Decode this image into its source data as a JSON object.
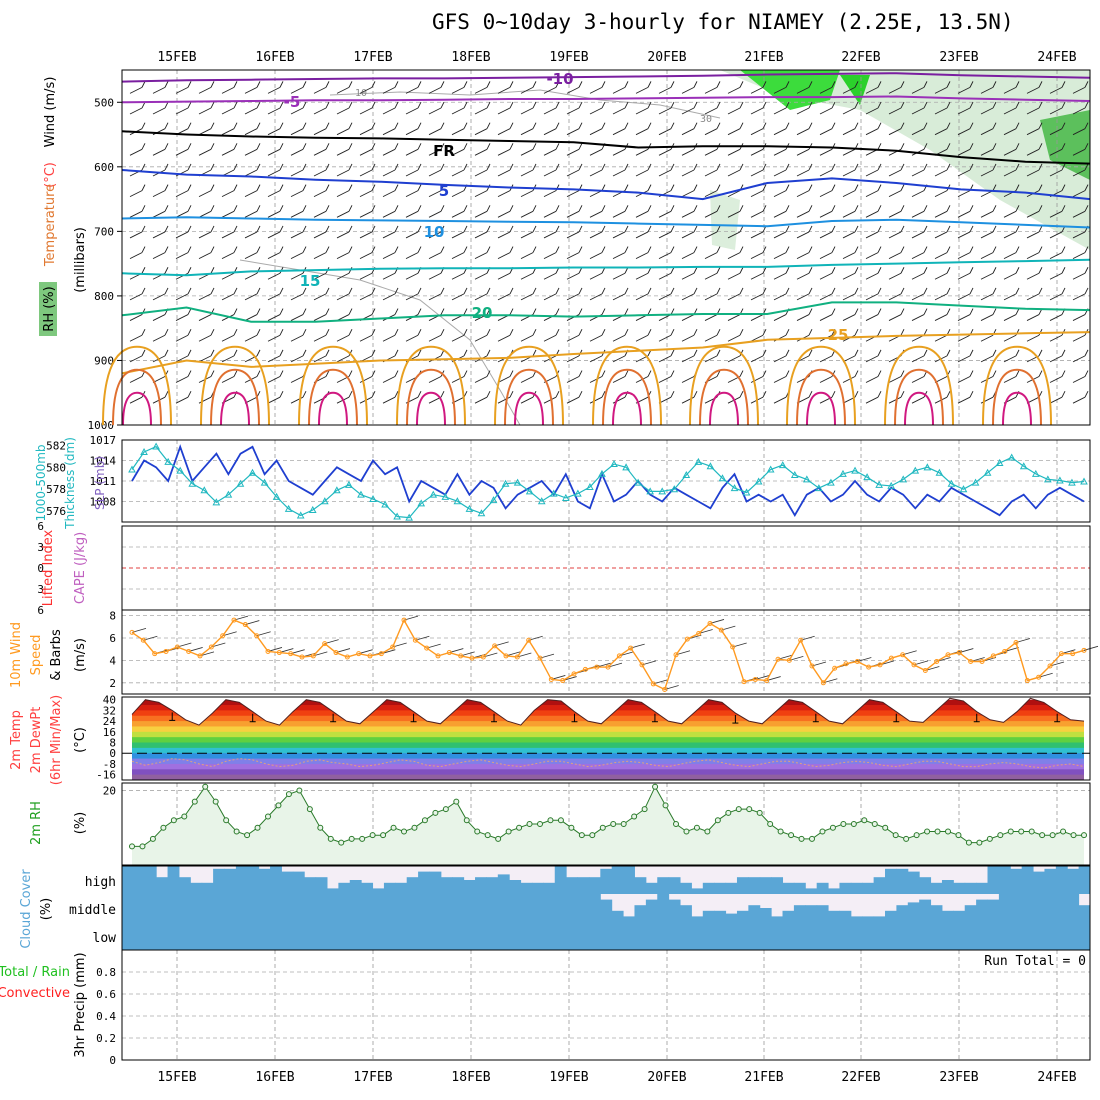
{
  "page": {
    "title": "GFS 0~10day 3-hourly for NIAMEY (2.25E, 13.5N)"
  },
  "colors": {
    "rh": "#2bbb2b",
    "temperature": "#ff4040",
    "wind": "#000000",
    "slp": "#1f3fd0",
    "thickness": "#20b8c0",
    "lifted_index": "#ff3030",
    "cape": "#c060c0",
    "wind10": "#ff9a20",
    "rh2m": "#20a020",
    "cloud": "#5aa6d6",
    "precip_total": "#20c020",
    "precip_conv": "#ff2020"
  },
  "chart_data": [
    {
      "type": "line",
      "panel": "upper-air",
      "x_labels": [
        "15FEB",
        "16FEB",
        "17FEB",
        "18FEB",
        "19FEB",
        "20FEB",
        "21FEB",
        "22FEB",
        "23FEB",
        "24FEB"
      ],
      "y_label_parts": [
        "RH (%)",
        "Temperature",
        "(°C)",
        "Wind (m/s)"
      ],
      "y_unit": "(millibars)",
      "y_ticks": [
        500,
        600,
        700,
        800,
        900,
        1000
      ],
      "ylim": [
        1000,
        450
      ],
      "contour_labels": [
        "-10",
        "-5",
        "FR",
        "5",
        "10",
        "15",
        "20",
        "25"
      ],
      "rh_contour_labels": [
        "10",
        "30"
      ],
      "isotherms": [
        {
          "label": "-10",
          "color": "#7a1fa0",
          "p": [
            468,
            466,
            465,
            464,
            463,
            463,
            462,
            461,
            460,
            459,
            457,
            456,
            455,
            458,
            460,
            462
          ]
        },
        {
          "label": "-5",
          "color": "#9a30b8",
          "p": [
            500,
            499,
            498,
            497,
            497,
            496,
            495,
            495,
            494,
            493,
            492,
            492,
            491,
            494,
            496,
            498
          ]
        },
        {
          "label": "FR",
          "color": "#000000",
          "p": [
            545,
            550,
            553,
            555,
            556,
            558,
            560,
            562,
            570,
            568,
            568,
            570,
            575,
            585,
            592,
            595
          ]
        },
        {
          "label": "5",
          "color": "#1f3fd0",
          "p": [
            605,
            612,
            615,
            620,
            623,
            628,
            632,
            635,
            640,
            650,
            625,
            618,
            625,
            635,
            640,
            650
          ]
        },
        {
          "label": "10",
          "color": "#1e90e0",
          "p": [
            680,
            678,
            680,
            682,
            683,
            684,
            685,
            686,
            688,
            690,
            692,
            684,
            682,
            686,
            690,
            694
          ]
        },
        {
          "label": "15",
          "color": "#10b4b8",
          "p": [
            765,
            768,
            762,
            760,
            758,
            757,
            757,
            756,
            756,
            755,
            755,
            752,
            750,
            748,
            746,
            744
          ]
        },
        {
          "label": "20",
          "color": "#10b080",
          "p": [
            830,
            818,
            840,
            840,
            835,
            830,
            830,
            832,
            830,
            828,
            828,
            810,
            810,
            815,
            820,
            822
          ]
        },
        {
          "label": "25",
          "color": "#e8a020",
          "p": [
            920,
            900,
            910,
            905,
            900,
            898,
            896,
            890,
            885,
            880,
            868,
            865,
            862,
            860,
            858,
            856
          ]
        }
      ]
    },
    {
      "type": "line",
      "panel": "slp-thickness",
      "left_ylabel_parts": [
        "1000-500mb",
        "Thickness (dm)"
      ],
      "right_ylabel": "SLP (mb)",
      "left_ticks": [
        576,
        578,
        580,
        582
      ],
      "right_ticks": [
        1008,
        1011,
        1014,
        1017
      ],
      "left_lim": [
        575,
        582.5
      ],
      "right_lim": [
        1005,
        1017
      ],
      "series": [
        {
          "name": "SLP (mb)",
          "values": [
            1011,
            1014,
            1013,
            1011,
            1016,
            1011,
            1013,
            1015,
            1012,
            1015,
            1016,
            1012,
            1014,
            1011,
            1010,
            1009,
            1011,
            1013,
            1012,
            1011,
            1014,
            1012,
            1013,
            1008,
            1011,
            1010,
            1009,
            1012,
            1009,
            1011,
            1010,
            1007,
            1009,
            1010,
            1011,
            1009,
            1012,
            1008,
            1007,
            1012,
            1008,
            1009,
            1011,
            1009,
            1008,
            1010,
            1009,
            1008,
            1007,
            1010,
            1012,
            1008,
            1009,
            1008,
            1009,
            1006,
            1009,
            1010,
            1008,
            1009,
            1011,
            1009,
            1008,
            1010,
            1009,
            1007,
            1009,
            1008,
            1010,
            1009,
            1008,
            1007,
            1006,
            1008,
            1009,
            1007,
            1009,
            1010,
            1009,
            1008
          ]
        },
        {
          "name": "1000-500mb Thickness (dm)",
          "values": [
            579.8,
            581.4,
            581.9,
            580.5,
            579.7,
            578.5,
            577.9,
            576.8,
            577.5,
            578.5,
            579.5,
            578.6,
            577.3,
            576.2,
            575.6,
            576.1,
            576.9,
            577.9,
            578.4,
            577.5,
            577.1,
            576.6,
            575.5,
            575.4,
            576.7,
            577.5,
            577.3,
            576.9,
            576.2,
            575.8,
            577.0,
            578.5,
            578.6,
            577.8,
            576.9,
            577.6,
            577.2,
            577.6,
            578.2,
            579.4,
            580.3,
            580.0,
            578.6,
            577.8,
            577.8,
            578.0,
            579.3,
            580.5,
            580.1,
            579.0,
            578.1,
            577.7,
            578.7,
            579.8,
            580.2,
            579.3,
            578.9,
            578.1,
            578.6,
            579.4,
            579.7,
            579.1,
            578.4,
            578.3,
            578.9,
            579.7,
            580.0,
            579.5,
            578.5,
            578.0,
            578.6,
            579.5,
            580.4,
            580.9,
            580.1,
            579.4,
            578.9,
            578.8,
            578.6,
            578.7
          ]
        }
      ]
    },
    {
      "type": "line",
      "panel": "stability",
      "left_ylabel": "Lifted Index",
      "right_ylabel": "CAPE (J/kg)",
      "ticks": [
        "6",
        "3",
        "0",
        "3",
        "6"
      ],
      "lim": [
        -6,
        6
      ]
    },
    {
      "type": "line",
      "panel": "wind10m",
      "ylabel_parts": [
        "10m Wind",
        "Speed",
        "& Barbs",
        "(m/s)"
      ],
      "ticks": [
        2,
        4,
        6,
        8
      ],
      "ylim": [
        1,
        8.5
      ],
      "series": [
        {
          "name": "10m Wind Speed",
          "values": [
            6.5,
            5.8,
            4.6,
            4.8,
            5.2,
            4.8,
            4.4,
            5.2,
            6.2,
            7.6,
            7.2,
            6.2,
            4.8,
            4.7,
            4.6,
            4.3,
            4.4,
            5.5,
            4.7,
            4.3,
            4.6,
            4.4,
            4.6,
            5.2,
            7.6,
            5.8,
            5.1,
            4.4,
            4.7,
            4.4,
            4.2,
            4.3,
            5.3,
            4.4,
            4.3,
            5.8,
            4.2,
            2.3,
            2.2,
            2.8,
            3.2,
            3.4,
            3.4,
            4.4,
            5.1,
            3.6,
            1.9,
            1.4,
            4.5,
            5.9,
            6.4,
            7.3,
            6.7,
            5.2,
            2.1,
            2.3,
            2.2,
            4.1,
            4.0,
            5.8,
            3.5,
            2.0,
            3.3,
            3.7,
            3.9,
            3.4,
            3.6,
            4.2,
            4.5,
            3.6,
            3.1,
            3.9,
            4.5,
            4.7,
            3.9,
            3.9,
            4.4,
            4.8,
            5.6,
            2.2,
            2.5,
            3.5,
            4.6,
            4.6,
            4.9
          ]
        }
      ]
    },
    {
      "type": "area",
      "panel": "temperature2m",
      "ylabel_parts": [
        "2m Temp",
        "2m DewPt",
        "(6hr Min/Max)",
        "(°C)"
      ],
      "ticks": [
        "40",
        "32",
        "24",
        "16",
        "8",
        "0",
        "-8",
        "-16"
      ],
      "ylim": [
        -20,
        42
      ],
      "series": [
        {
          "name": "2m Temp",
          "values": [
            29,
            40,
            38,
            32,
            25,
            21,
            30,
            40,
            38,
            31,
            24,
            21,
            31,
            40,
            38,
            31,
            24,
            22,
            31,
            40,
            38,
            31,
            24,
            22,
            31,
            40,
            38,
            31,
            24,
            21,
            32,
            40,
            39,
            31,
            24,
            22,
            31,
            40,
            38,
            31,
            24,
            22,
            31,
            40,
            38,
            30,
            24,
            22,
            31,
            40,
            38,
            31,
            24,
            22,
            31,
            40,
            38,
            31,
            24,
            23,
            32,
            41,
            39,
            31,
            25,
            23,
            31,
            41,
            38,
            31,
            25,
            24
          ]
        },
        {
          "name": "2m DewPt",
          "values": [
            -6,
            -9,
            -7,
            -4,
            -5,
            -8,
            -10,
            -6,
            -4,
            -5,
            -8,
            -10,
            -9,
            -6,
            -5,
            -7,
            -8,
            -10,
            -9,
            -7,
            -5,
            -6,
            -9,
            -10,
            -8,
            -6,
            -5,
            -7,
            -9,
            -10,
            -8,
            -6,
            -6,
            -8,
            -10,
            -9,
            -7,
            -6,
            -7,
            -9,
            -10,
            -8,
            -6,
            -5,
            -7,
            -9,
            -10,
            -8,
            -6,
            -6,
            -8,
            -10,
            -9,
            -7,
            -6,
            -7,
            -9,
            -10,
            -8,
            -6,
            -6,
            -8,
            -10,
            -10,
            -8,
            -7,
            -8,
            -10,
            -11,
            -9,
            -8,
            -10
          ]
        }
      ]
    },
    {
      "type": "line",
      "panel": "rh2m",
      "ylabel_parts": [
        "2m RH",
        "(%)"
      ],
      "ticks": [
        20
      ],
      "ylim": [
        0,
        22
      ],
      "series": [
        {
          "name": "2m RH",
          "values": [
            5,
            5,
            7,
            10,
            12,
            13,
            17,
            21,
            17,
            12,
            9,
            8,
            10,
            13,
            16,
            19,
            20,
            15,
            10,
            7,
            6,
            7,
            7,
            8,
            8,
            10,
            9,
            10,
            12,
            14,
            15,
            17,
            12,
            9,
            8,
            7,
            9,
            10,
            11,
            11,
            12,
            12,
            10,
            8,
            8,
            10,
            11,
            11,
            13,
            15,
            21,
            16,
            11,
            9,
            10,
            9,
            12,
            14,
            15,
            15,
            14,
            11,
            9,
            8,
            7,
            7,
            9,
            10,
            11,
            11,
            12,
            11,
            10,
            8,
            7,
            8,
            9,
            9,
            9,
            8,
            6,
            6,
            7,
            8,
            9,
            9,
            9,
            8,
            8,
            9,
            8,
            8
          ]
        }
      ]
    },
    {
      "type": "bar",
      "panel": "cloud",
      "ylabel_parts": [
        "Cloud Cover",
        "(%)"
      ],
      "levels": [
        "high",
        "middle",
        "low"
      ],
      "series": [
        {
          "name": "high",
          "values": [
            100,
            100,
            100,
            60,
            100,
            60,
            40,
            40,
            90,
            90,
            100,
            100,
            90,
            100,
            80,
            80,
            60,
            60,
            20,
            40,
            50,
            40,
            20,
            40,
            40,
            60,
            80,
            80,
            60,
            60,
            50,
            60,
            60,
            70,
            50,
            40,
            40,
            40,
            100,
            60,
            60,
            60,
            90,
            100,
            100,
            60,
            40,
            60,
            60,
            40,
            20,
            40,
            40,
            40,
            60,
            60,
            60,
            60,
            40,
            40,
            20,
            40,
            20,
            40,
            40,
            40,
            60,
            90,
            90,
            80,
            60,
            40,
            50,
            40,
            40,
            40,
            100,
            100,
            90,
            100,
            80,
            90,
            100,
            90,
            100
          ]
        },
        {
          "name": "middle",
          "values": [
            100,
            100,
            100,
            100,
            100,
            100,
            100,
            100,
            100,
            100,
            100,
            100,
            100,
            100,
            100,
            100,
            100,
            100,
            100,
            100,
            100,
            100,
            100,
            100,
            100,
            100,
            100,
            100,
            100,
            100,
            100,
            100,
            100,
            100,
            100,
            100,
            100,
            100,
            100,
            100,
            100,
            100,
            80,
            40,
            20,
            60,
            80,
            100,
            80,
            60,
            20,
            40,
            40,
            30,
            40,
            60,
            50,
            20,
            40,
            60,
            60,
            60,
            40,
            40,
            20,
            20,
            20,
            40,
            60,
            70,
            80,
            60,
            40,
            40,
            60,
            80,
            80,
            100,
            100,
            100,
            100,
            100,
            100,
            100,
            60
          ]
        }
      ]
    },
    {
      "type": "bar",
      "panel": "precip",
      "ylabel": "3hr Precip (mm)",
      "side_label_parts": [
        "Total / Rain",
        "Convective"
      ],
      "run_total": "Run Total = 0",
      "ticks": [
        "0",
        "0.2",
        "0.4",
        "0.6",
        "0.8"
      ],
      "ylim": [
        0,
        1
      ],
      "series": [
        {
          "name": "3hr Precip",
          "values": []
        }
      ]
    }
  ]
}
